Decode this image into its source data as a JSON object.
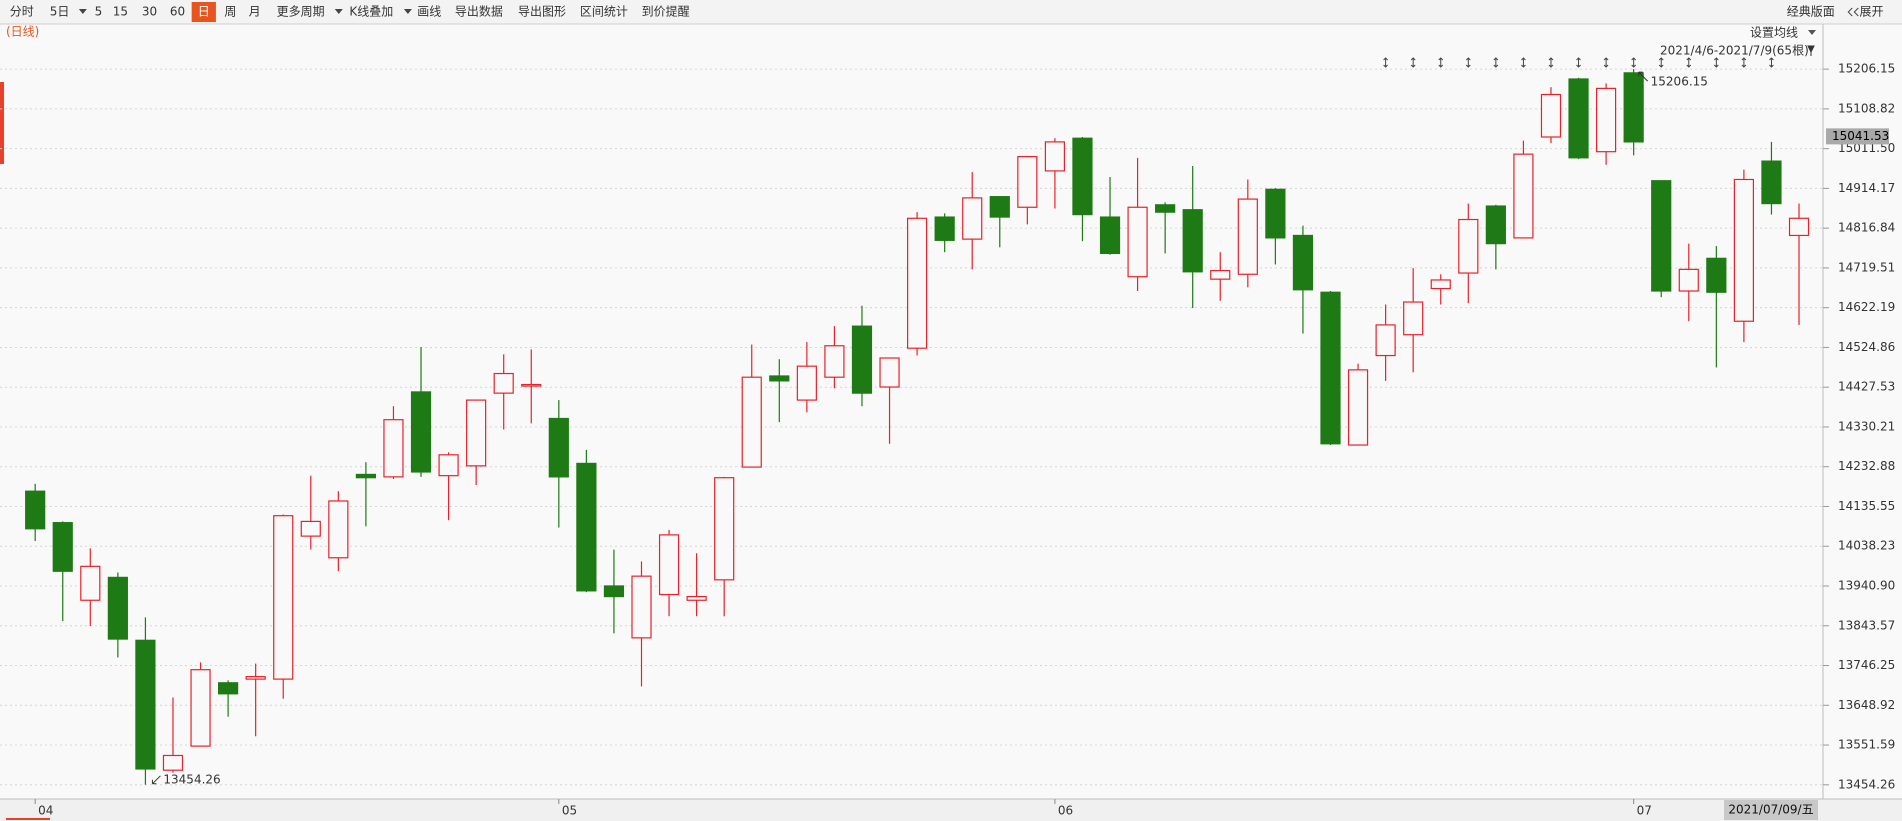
{
  "toolbar": {
    "items": [
      "分时",
      "5日",
      "5",
      "15",
      "30",
      "60",
      "日",
      "周",
      "月",
      "更多周期",
      "K线叠加",
      "画线",
      "导出数据",
      "导出图形",
      "区间统计",
      "到价提醒"
    ],
    "right": [
      "经典版面",
      "展开"
    ]
  },
  "chart_data": {
    "type": "candlestick",
    "period_label": "(日线)",
    "ma_setting": "设置均线",
    "range_label": "2021/4/6-2021/7/9(65根)",
    "date_label": "2021/07/09/五",
    "categories": [
      "04",
      null,
      null,
      null,
      null,
      null,
      null,
      null,
      null,
      null,
      null,
      null,
      null,
      null,
      null,
      null,
      null,
      null,
      null,
      "05",
      null,
      null,
      null,
      null,
      null,
      null,
      null,
      null,
      null,
      null,
      null,
      null,
      null,
      null,
      null,
      null,
      null,
      "06",
      null,
      null,
      null,
      null,
      null,
      null,
      null,
      null,
      null,
      null,
      null,
      null,
      null,
      null,
      null,
      null,
      null,
      null,
      null,
      null,
      "07",
      null,
      null,
      null,
      null,
      null,
      null
    ],
    "open": [
      14173,
      14096,
      13906,
      13962,
      13808,
      13490,
      13549,
      13704,
      13713,
      13713,
      14063,
      14010,
      14214,
      14208,
      14416,
      14211,
      14235,
      14413,
      14431,
      14351,
      14241,
      13941,
      13814,
      13920,
      13906,
      13956,
      14232,
      14455,
      14396,
      14452,
      14577,
      14428,
      14523,
      14844,
      14790,
      14894,
      14868,
      14957,
      15037,
      14844,
      14698,
      14874,
      14862,
      14692,
      14704,
      14912,
      14799,
      14660,
      14286,
      14505,
      14556,
      14669,
      14707,
      14871,
      14793,
      15040,
      15182,
      15004,
      15197,
      14933,
      14663,
      14743,
      14589,
      14981,
      14799
    ],
    "high": [
      14191,
      14099,
      14033,
      13974,
      13864,
      13668,
      13754,
      13710,
      13751,
      14116,
      14211,
      14173,
      14244,
      14381,
      14526,
      14268,
      14396,
      14508,
      14520,
      14396,
      14274,
      14030,
      14001,
      14078,
      14021,
      14208,
      14532,
      14496,
      14538,
      14577,
      14627,
      14499,
      14856,
      14853,
      14954,
      14894,
      14992,
      15037,
      15040,
      14942,
      14989,
      14880,
      14969,
      14758,
      14936,
      14915,
      14823,
      14663,
      14485,
      14630,
      14719,
      14704,
      14877,
      14874,
      15031,
      15162,
      15185,
      15171,
      15206.15,
      14933,
      14779,
      14773,
      14960,
      15028,
      14877
    ],
    "low": [
      14051,
      13855,
      13843,
      13766,
      13454.26,
      13484,
      13549,
      13621,
      13573,
      13665,
      14030,
      13977,
      14087,
      14203,
      14208,
      14102,
      14188,
      14324,
      14339,
      14084,
      13926,
      13825,
      13695,
      13867,
      13867,
      13867,
      14232,
      14342,
      14366,
      14425,
      14381,
      14289,
      14505,
      14758,
      14716,
      14770,
      14826,
      14865,
      14785,
      14752,
      14663,
      14755,
      14621,
      14639,
      14672,
      14728,
      14559,
      14286,
      14286,
      14443,
      14464,
      14630,
      14633,
      14716,
      14793,
      15025,
      14986,
      14972,
      14995,
      14648,
      14589,
      14476,
      14538,
      14850,
      14580
    ],
    "close": [
      14081,
      13977,
      13989,
      13811,
      13493,
      13526,
      13736,
      13677,
      13719,
      14113,
      14099,
      14149,
      14206,
      14348,
      14220,
      14262,
      14396,
      14461,
      14434,
      14208,
      13929,
      13915,
      13965,
      14066,
      13915,
      14206,
      14452,
      14443,
      14479,
      14529,
      14413,
      14499,
      14841,
      14787,
      14891,
      14844,
      14992,
      15028,
      14850,
      14755,
      14868,
      14856,
      14710,
      14713,
      14888,
      14793,
      14666,
      14289,
      14470,
      14580,
      14636,
      14690,
      14838,
      14779,
      14998,
      15144,
      14989,
      15159,
      15028,
      14663,
      14716,
      14660,
      14936,
      14877,
      14841
    ],
    "up_color": "#e8222a",
    "down_color": "#1e7a14",
    "ylim": [
      13424.4,
      15321.5
    ],
    "yticks": [
      13454.26,
      13551.59,
      13648.92,
      13746.25,
      13843.57,
      {
        "value": 13940.9,
        "label": "13940.90"
      },
      14038.23,
      14135.55,
      14232.88,
      14330.21,
      14427.53,
      14524.86,
      14622.19,
      14719.51,
      14816.84,
      14914.17,
      {
        "value": 15011.5,
        "label": "15011.50"
      },
      15108.82,
      15206.15
    ],
    "price_marker": 15041.53,
    "grid": true
  }
}
